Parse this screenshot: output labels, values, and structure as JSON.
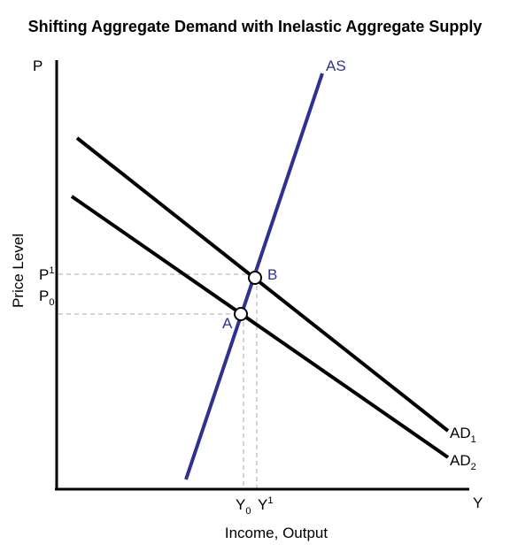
{
  "title": "Shifting Aggregate Demand with Inelastic Aggregate Supply",
  "axes": {
    "y_axis_letter": "P",
    "x_axis_letter": "Y",
    "y_label": "Price Level",
    "x_label": "Income, Output"
  },
  "curves": {
    "as": "AS",
    "ad1": {
      "base": "AD",
      "sub": "1"
    },
    "ad2": {
      "base": "AD",
      "sub": "2"
    }
  },
  "points": {
    "a": "A",
    "b": "B"
  },
  "levels": {
    "p1": {
      "base": "P",
      "sup": "1"
    },
    "p0": {
      "base": "P",
      "sub": "0"
    },
    "y0": {
      "base": "Y",
      "sub": "0"
    },
    "y1": {
      "base": "Y",
      "sup": "1"
    }
  },
  "colors": {
    "axis": "#000000",
    "ad_lines": "#000000",
    "as_line": "#2e3192",
    "guides": "#aaaaaa"
  }
}
